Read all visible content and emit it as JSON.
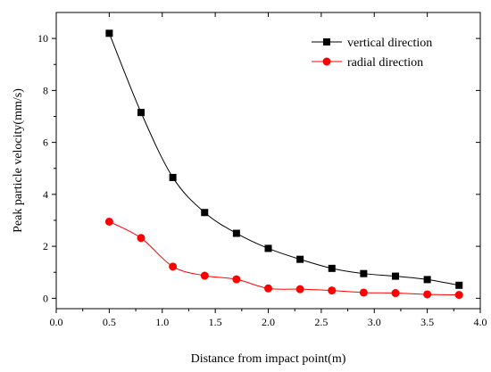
{
  "chart_data": {
    "type": "line",
    "xlabel": "Distance from impact point(m)",
    "ylabel": "Peak particle velocity(mm/s)",
    "xlim": [
      0.0,
      4.0
    ],
    "ylim": [
      -0.4,
      11.0
    ],
    "x_ticks": [
      "0.0",
      "0.5",
      "1.0",
      "1.5",
      "2.0",
      "2.5",
      "3.0",
      "3.5",
      "4.0"
    ],
    "y_ticks": [
      "0",
      "2",
      "4",
      "6",
      "8",
      "10"
    ],
    "grid": false,
    "legend_position": "top-right",
    "series": [
      {
        "name": "vertical direction",
        "marker": "square",
        "color": "#000000",
        "x": [
          0.5,
          0.8,
          1.1,
          1.4,
          1.7,
          2.0,
          2.3,
          2.6,
          2.9,
          3.2,
          3.5,
          3.8
        ],
        "values": [
          10.2,
          7.15,
          4.65,
          3.3,
          2.5,
          1.92,
          1.5,
          1.15,
          0.95,
          0.85,
          0.72,
          0.5
        ]
      },
      {
        "name": "radial direction",
        "marker": "circle",
        "color": "#ff0000",
        "x": [
          0.5,
          0.8,
          1.1,
          1.4,
          1.7,
          2.0,
          2.3,
          2.6,
          2.9,
          3.2,
          3.5,
          3.8
        ],
        "values": [
          2.95,
          2.32,
          1.22,
          0.87,
          0.73,
          0.38,
          0.35,
          0.3,
          0.22,
          0.2,
          0.15,
          0.13
        ]
      }
    ]
  }
}
